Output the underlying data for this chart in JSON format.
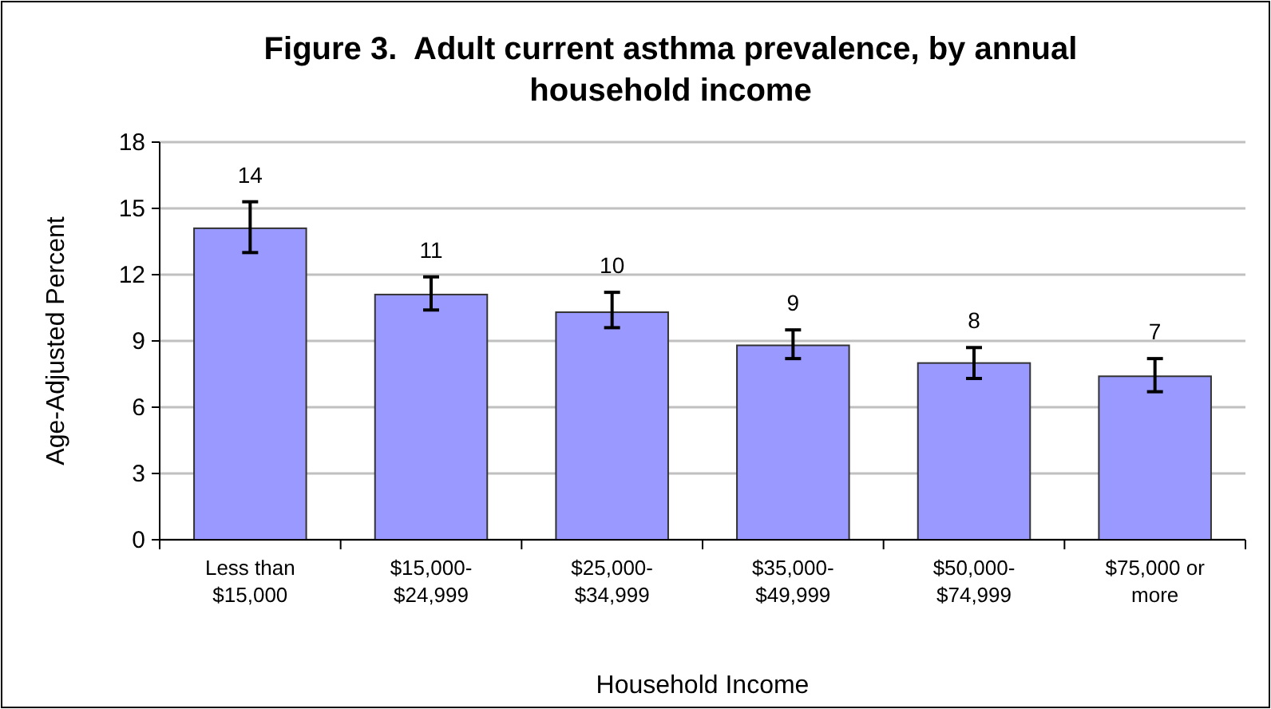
{
  "chart_data": {
    "type": "bar",
    "title": "Figure 3.  Adult current asthma prevalence, by annual household income",
    "xlabel": "Household Income",
    "ylabel": "Age-Adjusted Percent",
    "categories": [
      "Less than $15,000",
      "$15,000-$24,999",
      "$25,000-$34,999",
      "$35,000-$49,999",
      "$50,000-$74,999",
      "$75,000 or more"
    ],
    "values": [
      14.1,
      11.1,
      10.3,
      8.8,
      8.0,
      7.4
    ],
    "errors": [
      [
        13.0,
        15.3
      ],
      [
        10.4,
        11.9
      ],
      [
        9.6,
        11.2
      ],
      [
        8.2,
        9.5
      ],
      [
        7.3,
        8.7
      ],
      [
        6.7,
        8.2
      ]
    ],
    "value_labels": [
      "14",
      "11",
      "10",
      "9",
      "8",
      "7"
    ],
    "color": "#9999ff",
    "ylim": [
      0,
      18
    ],
    "yticks": [
      0,
      3,
      6,
      9,
      12,
      15,
      18
    ],
    "grid": "y"
  }
}
